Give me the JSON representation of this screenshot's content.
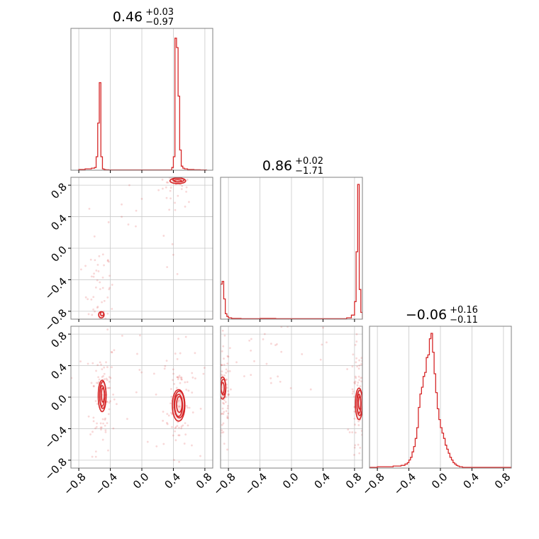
{
  "chart_data": {
    "type": "corner",
    "color": "#d62728",
    "grid": true,
    "axis_range": [
      -0.9,
      0.9
    ],
    "tick_values": [
      -0.8,
      -0.4,
      0.0,
      0.4,
      0.8
    ],
    "tick_labels": [
      "−0.8",
      "−0.4",
      "0.0",
      "0.4",
      "0.8"
    ],
    "titles": [
      {
        "median": "0.46",
        "plus": "+0.03",
        "minus": "−0.97"
      },
      {
        "median": "0.86",
        "plus": "+0.02",
        "minus": "−1.71"
      },
      {
        "median": "−0.06",
        "plus": "+0.16",
        "minus": "−0.11"
      }
    ],
    "histograms": [
      {
        "bin_edges": [
          -0.8,
          -0.76,
          -0.72,
          -0.68,
          -0.64,
          -0.6,
          -0.58,
          -0.56,
          -0.54,
          -0.52,
          -0.5,
          -0.48,
          -0.46,
          -0.42,
          -0.38,
          -0.34,
          -0.3,
          -0.26,
          -0.22,
          -0.18,
          -0.14,
          -0.1,
          -0.06,
          -0.02,
          0.02,
          0.06,
          0.1,
          0.14,
          0.18,
          0.22,
          0.26,
          0.3,
          0.34,
          0.38,
          0.4,
          0.42,
          0.44,
          0.46,
          0.48,
          0.5,
          0.52,
          0.54,
          0.58,
          0.62,
          0.66,
          0.7,
          0.74,
          0.78,
          0.82
        ],
        "counts": [
          0.005,
          0.005,
          0.01,
          0.01,
          0.015,
          0.02,
          0.1,
          0.35,
          0.65,
          0.1,
          0.01,
          0.005,
          0.003,
          0.002,
          0.002,
          0.002,
          0.002,
          0.002,
          0.002,
          0.002,
          0.002,
          0.002,
          0.002,
          0.002,
          0.002,
          0.002,
          0.002,
          0.002,
          0.002,
          0.002,
          0.002,
          0.002,
          0.002,
          0.02,
          0.1,
          0.98,
          0.91,
          0.55,
          0.15,
          0.03,
          0.015,
          0.01,
          0.005,
          0.005,
          0.003,
          0.003,
          0.002,
          0.002
        ]
      },
      {
        "bin_edges": [
          -0.9,
          -0.88,
          -0.86,
          -0.84,
          -0.82,
          -0.8,
          -0.76,
          -0.72,
          -0.68,
          -0.64,
          -0.6,
          -0.4,
          -0.3,
          -0.2,
          -0.1,
          0.0,
          0.1,
          0.2,
          0.3,
          0.4,
          0.5,
          0.6,
          0.7,
          0.76,
          0.8,
          0.82,
          0.84,
          0.86,
          0.88,
          0.9
        ],
        "counts": [
          0.26,
          0.28,
          0.15,
          0.04,
          0.02,
          0.01,
          0.005,
          0.005,
          0.005,
          0.003,
          0.003,
          0.005,
          0.005,
          0.003,
          0.003,
          0.003,
          0.003,
          0.003,
          0.003,
          0.003,
          0.003,
          0.003,
          0.01,
          0.03,
          0.13,
          0.5,
          1.0,
          0.22,
          0.05
        ]
      },
      {
        "bin_edges": [
          -0.9,
          -0.8,
          -0.7,
          -0.6,
          -0.5,
          -0.45,
          -0.42,
          -0.4,
          -0.38,
          -0.36,
          -0.34,
          -0.32,
          -0.3,
          -0.28,
          -0.26,
          -0.24,
          -0.22,
          -0.2,
          -0.18,
          -0.16,
          -0.14,
          -0.12,
          -0.1,
          -0.08,
          -0.06,
          -0.04,
          -0.02,
          0.0,
          0.02,
          0.04,
          0.06,
          0.08,
          0.1,
          0.12,
          0.14,
          0.16,
          0.18,
          0.2,
          0.22,
          0.24,
          0.26,
          0.28,
          0.3,
          0.34,
          0.38,
          0.42,
          0.5,
          0.6,
          0.7,
          0.8,
          0.9
        ],
        "counts": [
          0.005,
          0.01,
          0.01,
          0.015,
          0.02,
          0.03,
          0.04,
          0.06,
          0.08,
          0.12,
          0.16,
          0.22,
          0.3,
          0.45,
          0.55,
          0.6,
          0.68,
          0.71,
          0.82,
          0.84,
          0.96,
          1.0,
          0.86,
          0.7,
          0.56,
          0.44,
          0.36,
          0.3,
          0.26,
          0.22,
          0.17,
          0.14,
          0.11,
          0.08,
          0.06,
          0.04,
          0.03,
          0.02,
          0.015,
          0.01,
          0.01,
          0.005,
          0.005,
          0.005,
          0.005,
          0.005,
          0.005,
          0.005,
          0.005,
          0.005
        ]
      }
    ],
    "contour_clusters": [
      {
        "panel": [
          1,
          0
        ],
        "cx": 0.46,
        "cy": 0.86,
        "rx": [
          0.1,
          0.07,
          0.045
        ],
        "ry": [
          0.035,
          0.025,
          0.015
        ]
      },
      {
        "panel": [
          1,
          0
        ],
        "cx": -0.51,
        "cy": -0.84,
        "rx": [
          0.035,
          0.02
        ],
        "ry": [
          0.04,
          0.025
        ]
      },
      {
        "panel": [
          2,
          0
        ],
        "cx": -0.5,
        "cy": 0.02,
        "rx": [
          0.05,
          0.04,
          0.03,
          0.02
        ],
        "ry": [
          0.2,
          0.17,
          0.13,
          0.09
        ]
      },
      {
        "panel": [
          2,
          0
        ],
        "cx": 0.47,
        "cy": -0.1,
        "rx": [
          0.08,
          0.065,
          0.05,
          0.035
        ],
        "ry": [
          0.2,
          0.17,
          0.14,
          0.1
        ]
      },
      {
        "panel": [
          2,
          1
        ],
        "cx": -0.87,
        "cy": 0.12,
        "rx": [
          0.04,
          0.03,
          0.02
        ],
        "ry": [
          0.14,
          0.1,
          0.07
        ]
      },
      {
        "panel": [
          2,
          1
        ],
        "cx": 0.86,
        "cy": -0.08,
        "rx": [
          0.045,
          0.035,
          0.025,
          0.015
        ],
        "ry": [
          0.2,
          0.16,
          0.12,
          0.08
        ]
      }
    ],
    "scatter_clouds": [
      {
        "panel": [
          1,
          0
        ],
        "cx": 0.46,
        "cy": 0.8,
        "sx": 0.12,
        "sy": 0.12,
        "n": 35
      },
      {
        "panel": [
          1,
          0
        ],
        "cx": -0.55,
        "cy": -0.6,
        "sx": 0.08,
        "sy": 0.3,
        "n": 45
      },
      {
        "panel": [
          1,
          0
        ],
        "cx": -0.2,
        "cy": 0.1,
        "sx": 0.5,
        "sy": 0.5,
        "n": 25
      },
      {
        "panel": [
          2,
          0
        ],
        "cx": -0.5,
        "cy": 0.05,
        "sx": 0.08,
        "sy": 0.35,
        "n": 90
      },
      {
        "panel": [
          2,
          0
        ],
        "cx": 0.47,
        "cy": -0.05,
        "sx": 0.1,
        "sy": 0.35,
        "n": 90
      },
      {
        "panel": [
          2,
          0
        ],
        "cx": -0.1,
        "cy": 0.3,
        "sx": 0.55,
        "sy": 0.5,
        "n": 30
      },
      {
        "panel": [
          2,
          1
        ],
        "cx": -0.86,
        "cy": 0.0,
        "sx": 0.05,
        "sy": 0.4,
        "n": 80
      },
      {
        "panel": [
          2,
          1
        ],
        "cx": 0.85,
        "cy": -0.05,
        "sx": 0.05,
        "sy": 0.4,
        "n": 80
      },
      {
        "panel": [
          2,
          1
        ],
        "cx": -0.2,
        "cy": 0.55,
        "sx": 0.45,
        "sy": 0.25,
        "n": 35
      }
    ]
  }
}
